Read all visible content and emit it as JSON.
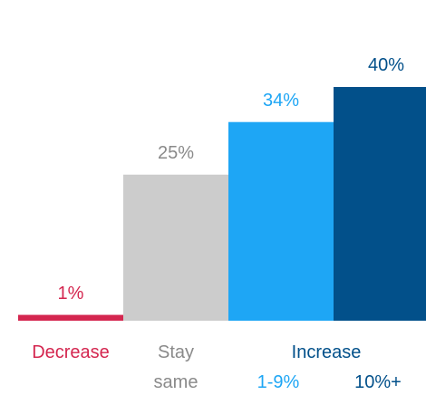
{
  "chart_data": {
    "type": "bar",
    "categories": [
      "Decrease",
      "Stay same",
      "1-9%",
      "10%+"
    ],
    "values": [
      1,
      25,
      34,
      40
    ],
    "value_labels": [
      "1%",
      "25%",
      "34%",
      "40%"
    ],
    "group_label": "Increase",
    "colors": [
      "#d4264f",
      "#cccccc",
      "#1ea6f5",
      "#02508a"
    ],
    "label_colors": [
      "#d4264f",
      "#8a8a8a",
      "#1ea6f5",
      "#02508a"
    ],
    "ylim": [
      0,
      45
    ],
    "category_label_lines": {
      "stay_line1": "Stay",
      "stay_line2": "same"
    }
  }
}
